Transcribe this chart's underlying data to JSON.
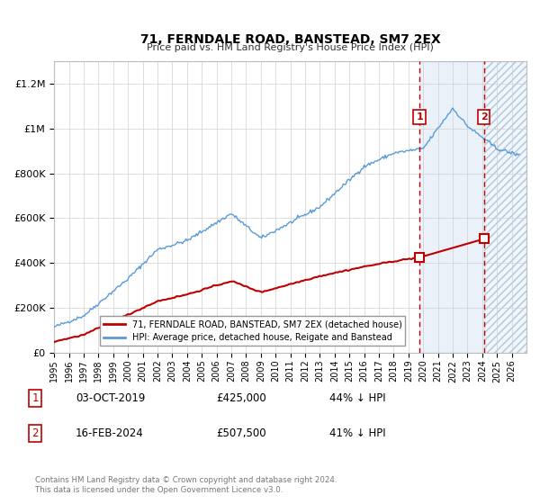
{
  "title": "71, FERNDALE ROAD, BANSTEAD, SM7 2EX",
  "subtitle": "Price paid vs. HM Land Registry's House Price Index (HPI)",
  "legend_line1": "71, FERNDALE ROAD, BANSTEAD, SM7 2EX (detached house)",
  "legend_line2": "HPI: Average price, detached house, Reigate and Banstead",
  "footnote": "Contains HM Land Registry data © Crown copyright and database right 2024.\nThis data is licensed under the Open Government Licence v3.0.",
  "sale1_date": "03-OCT-2019",
  "sale1_price": "£425,000",
  "sale1_hpi": "44% ↓ HPI",
  "sale2_date": "16-FEB-2024",
  "sale2_price": "£507,500",
  "sale2_hpi": "41% ↓ HPI",
  "hpi_color": "#5b9bd5",
  "price_color": "#c00000",
  "dashed_line_color": "#c00000",
  "shade1_color": "#dce8f5",
  "ylim": [
    0,
    1300000
  ],
  "xlim_start": 1995,
  "xlim_end": 2027,
  "sale1_x": 2019.75,
  "sale1_y": 425000,
  "sale2_x": 2024.12,
  "sale2_y": 507500
}
